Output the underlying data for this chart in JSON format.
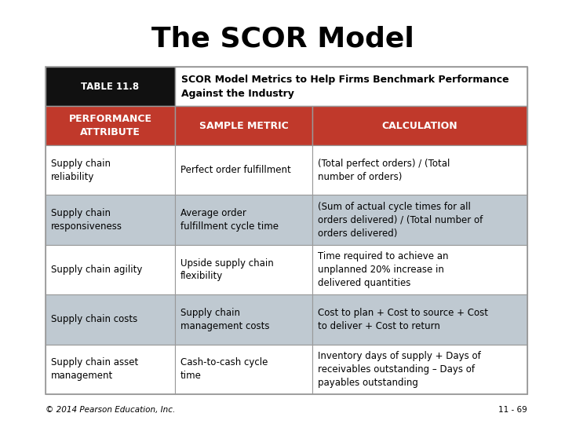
{
  "title": "The SCOR Model",
  "table_label": "TABLE 11.8",
  "table_description": "SCOR Model Metrics to Help Firms Benchmark Performance\nAgainst the Industry",
  "header_row": [
    "PERFORMANCE\nATTRIBUTE",
    "SAMPLE METRIC",
    "CALCULATION"
  ],
  "rows": [
    [
      "Supply chain\nreliability",
      "Perfect order fulfillment",
      "(Total perfect orders) / (Total\nnumber of orders)"
    ],
    [
      "Supply chain\nresponsiveness",
      "Average order\nfulfillment cycle time",
      "(Sum of actual cycle times for all\norders delivered) / (Total number of\norders delivered)"
    ],
    [
      "Supply chain agility",
      "Upside supply chain\nflexibility",
      "Time required to achieve an\nunplanned 20% increase in\ndelivered quantities"
    ],
    [
      "Supply chain costs",
      "Supply chain\nmanagement costs",
      "Cost to plan + Cost to source + Cost\nto deliver + Cost to return"
    ],
    [
      "Supply chain asset\nmanagement",
      "Cash-to-cash cycle\ntime",
      "Inventory days of supply + Days of\nreceivables outstanding – Days of\npayables outstanding"
    ]
  ],
  "color_red": "#C0392B",
  "color_black": "#111111",
  "color_white": "#FFFFFF",
  "color_row_gray": "#BFC9D1",
  "color_border": "#999999",
  "footer_left": "© 2014 Pearson Education, Inc.",
  "footer_right": "11 - 69",
  "title_fontsize": 26,
  "label_fontsize": 8.5,
  "header_fontsize": 9,
  "body_fontsize": 8.5,
  "footer_fontsize": 7.5,
  "desc_fontsize": 9
}
